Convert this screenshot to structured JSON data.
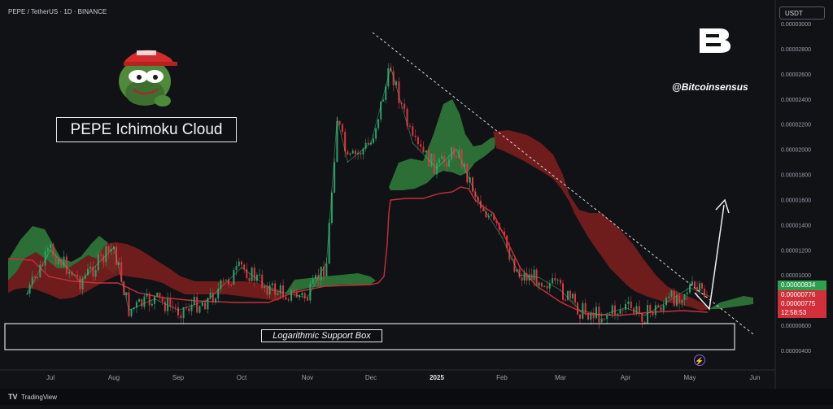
{
  "header": {
    "pair": "PEPE / TetherUS · 1D · BINANCE",
    "currency": "USDT"
  },
  "annotations": {
    "title": "PEPE Ichimoku Cloud",
    "support_label": "Logarithmic Support Box",
    "handle": "@Bitcoinsensus"
  },
  "price_tags": [
    {
      "label": "0.00000834",
      "color": "#2e9e4f"
    },
    {
      "label": "0.00000776",
      "color": "#d12f3a"
    },
    {
      "label": "0.00000775",
      "color": "#d12f3a"
    },
    {
      "label": "12:58:53",
      "color": "#d12f3a"
    }
  ],
  "footer": {
    "brand": "TradingView"
  },
  "colors": {
    "up": "#26a269",
    "down": "#e0323f",
    "cloud_bull": "#2f7a3a",
    "cloud_bear": "#7a1e1e",
    "baseline": "#c7303a"
  },
  "icons": [
    "pepe-logo-icon",
    "bitcoinsensus-logo-icon",
    "lightning-icon"
  ],
  "chart_data": {
    "type": "line",
    "title": "",
    "xlabel": "",
    "ylabel": "",
    "x_ticks": [
      "Jul",
      "Aug",
      "Sep",
      "Oct",
      "Nov",
      "Dec",
      "2025",
      "Feb",
      "Mar",
      "Apr",
      "May",
      "Jun"
    ],
    "y_ticks": [
      "0.00000400",
      "0.00000600",
      "0.00000800",
      "0.00001000",
      "0.00001200",
      "0.00001400",
      "0.00001600",
      "0.00001800",
      "0.00002000",
      "0.00002200",
      "0.00002400",
      "0.00002600",
      "0.00002800",
      "0.00003000"
    ],
    "ylim": [
      4e-06,
      3e-05
    ],
    "grid": false,
    "series": [
      {
        "values": [
          {
            "x": "Jun 20",
            "y": 8.5e-06
          },
          {
            "x": "Jul 1",
            "y": 1.2e-05
          },
          {
            "x": "Jul 15",
            "y": 9.5e-06
          },
          {
            "x": "Aug 1",
            "y": 1.22e-05
          },
          {
            "x": "Aug 8",
            "y": 7.2e-06
          },
          {
            "x": "Aug 20",
            "y": 8.1e-06
          },
          {
            "x": "Sep 1",
            "y": 7.2e-06
          },
          {
            "x": "Sep 15",
            "y": 8e-06
          },
          {
            "x": "Oct 1",
            "y": 1.06e-05
          },
          {
            "x": "Oct 15",
            "y": 8.8e-06
          },
          {
            "x": "Nov 1",
            "y": 8.2e-06
          },
          {
            "x": "Nov 10",
            "y": 1.1e-05
          },
          {
            "x": "Nov 15",
            "y": 2.25e-05
          },
          {
            "x": "Nov 20",
            "y": 1.9e-05
          },
          {
            "x": "Dec 1",
            "y": 2.05e-05
          },
          {
            "x": "Dec 10",
            "y": 2.65e-05
          },
          {
            "x": "Dec 20",
            "y": 2.05e-05
          },
          {
            "x": "Jan 1",
            "y": 1.85e-05
          },
          {
            "x": "Jan 10",
            "y": 2e-05
          },
          {
            "x": "Jan 20",
            "y": 1.6e-05
          },
          {
            "x": "Feb 1",
            "y": 1.3e-05
          },
          {
            "x": "Feb 10",
            "y": 1e-05
          },
          {
            "x": "Feb 20",
            "y": 9.8e-06
          },
          {
            "x": "Mar 1",
            "y": 8.8e-06
          },
          {
            "x": "Mar 10",
            "y": 7.2e-06
          },
          {
            "x": "Mar 20",
            "y": 6.8e-06
          },
          {
            "x": "Apr 1",
            "y": 7.4e-06
          },
          {
            "x": "Apr 10",
            "y": 6.8e-06
          },
          {
            "x": "Apr 20",
            "y": 7.8e-06
          },
          {
            "x": "May 1",
            "y": 9e-06
          },
          {
            "x": "May 10",
            "y": 8.3e-06
          }
        ]
      }
    ],
    "annotations": [
      "PEPE Ichimoku Cloud",
      "Logarithmic Support Box"
    ]
  }
}
